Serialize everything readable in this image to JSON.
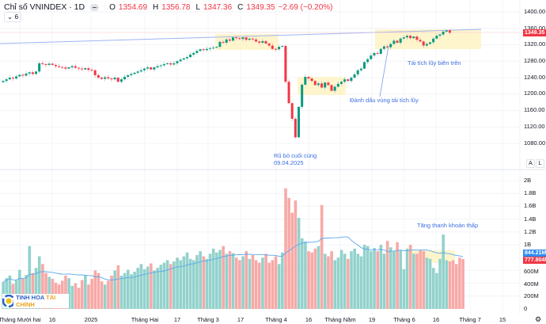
{
  "header": {
    "title": "Chỉ số VNINDEX · 1D",
    "open_label": "O",
    "open": "1354.69",
    "high_label": "H",
    "high": "1356.78",
    "low_label": "L",
    "low": "1347.36",
    "close_label": "C",
    "close": "1349.35",
    "change": "−2.69 (−0.20%)",
    "indicators_toggle": "6"
  },
  "colors": {
    "up": "#089981",
    "down": "#f23645",
    "up_vol": "#92d2cc",
    "down_vol": "#f7a9a7",
    "annotation": "#3d6fe0",
    "zone": "#fff3c4",
    "trendline": "#9fb4f5",
    "volume_ma": "#5aa8ea"
  },
  "price_axis": {
    "ticks": [
      "1400.00",
      "1360.00",
      "1320.00",
      "1280.00",
      "1240.00",
      "1200.00",
      "1160.00",
      "1120.00",
      "1080.00"
    ],
    "last_price_tag": "1349.35",
    "buttons": [
      "A",
      "L"
    ]
  },
  "volume_axis": {
    "ticks": [
      "2B",
      "1.8B",
      "1.6B",
      "1.4B",
      "1.2B",
      "1B",
      "600M",
      "400M",
      "200M",
      "0"
    ],
    "ma_tag": "844.21M",
    "volume_tag": "777.804M"
  },
  "time_axis": {
    "ticks": [
      "Tháng Mười hai",
      "16",
      "2025",
      "Tháng Hai",
      "17",
      "Tháng 3",
      "17",
      "Tháng 4",
      "16",
      "Tháng Năm",
      "19",
      "Tháng 6",
      "16",
      "Tháng 7",
      "15"
    ],
    "settings_icon": "gear-icon"
  },
  "annotations": {
    "shakeout_line1": "Rũ bỏ cuối cùng",
    "shakeout_line2": "09.04.2025",
    "reaccumulation_zone": "Đánh dấu vùng tái tích lũy",
    "upper_reaccumulation": "Tái tích lũy biên trên",
    "low_liquidity": "Tăng thanh khoản thấp"
  },
  "logo": {
    "text_a": "TINH HOA ",
    "text_b": "TÀI CHÍNH"
  },
  "chart_data": {
    "type": "candlestick",
    "symbol": "VNINDEX",
    "interval": "1D",
    "ylim": [
      1060,
      1410
    ],
    "volume_ylim": [
      0,
      2000
    ],
    "volume_unit": "M",
    "grid": true,
    "closes": [
      1232,
      1236,
      1240,
      1238,
      1243,
      1247,
      1245,
      1250,
      1253,
      1249,
      1255,
      1275,
      1273,
      1271,
      1274,
      1271,
      1268,
      1266,
      1265,
      1262,
      1265,
      1268,
      1264,
      1262,
      1260,
      1263,
      1259,
      1258,
      1246,
      1240,
      1237,
      1241,
      1238,
      1236,
      1240,
      1230,
      1236,
      1242,
      1246,
      1249,
      1252,
      1255,
      1258,
      1262,
      1265,
      1260,
      1265,
      1268,
      1270,
      1273,
      1275,
      1272,
      1275,
      1280,
      1284,
      1287,
      1290,
      1296,
      1300,
      1305,
      1309,
      1307,
      1310,
      1312,
      1313,
      1315,
      1327,
      1325,
      1333,
      1330,
      1338,
      1336,
      1334,
      1338,
      1332,
      1335,
      1333,
      1328,
      1325,
      1329,
      1323,
      1318,
      1310,
      1309,
      1315,
      1317,
      1230,
      1178,
      1140,
      1095,
      1169,
      1223,
      1242,
      1238,
      1232,
      1222,
      1226,
      1216,
      1228,
      1222,
      1208,
      1218,
      1225,
      1230,
      1236,
      1232,
      1240,
      1248,
      1258,
      1262,
      1278,
      1285,
      1294,
      1300,
      1298,
      1310,
      1316,
      1314,
      1322,
      1330,
      1325,
      1335,
      1338,
      1342,
      1336,
      1340,
      1332,
      1328,
      1318,
      1322,
      1326,
      1335,
      1342,
      1345,
      1352,
      1355,
      1349.35
    ],
    "volumes": [
      420,
      480,
      520,
      390,
      450,
      610,
      470,
      530,
      980,
      560,
      640,
      820,
      700,
      560,
      500,
      470,
      410,
      380,
      440,
      520,
      480,
      360,
      400,
      330,
      450,
      520,
      380,
      470,
      600,
      560,
      430,
      380,
      440,
      520,
      600,
      680,
      520,
      560,
      610,
      540,
      580,
      640,
      700,
      620,
      660,
      710,
      600,
      640,
      690,
      720,
      760,
      700,
      740,
      800,
      760,
      820,
      880,
      780,
      760,
      840,
      900,
      820,
      780,
      860,
      940,
      880,
      920,
      980,
      860,
      900,
      870,
      800,
      760,
      820,
      900,
      780,
      840,
      760,
      720,
      800,
      860,
      720,
      760,
      820,
      700,
      880,
      1880,
      1730,
      1500,
      1690,
      1420,
      1100,
      1050,
      900,
      880,
      940,
      980,
      1620,
      860,
      820,
      900,
      760,
      800,
      920,
      860,
      780,
      900,
      940,
      860,
      820,
      1000,
      980,
      900,
      950,
      900,
      1000,
      860,
      1060,
      960,
      900,
      1040,
      920,
      620,
      940,
      1000,
      860,
      860,
      920,
      900,
      800,
      780,
      640,
      560,
      780,
      1160,
      760,
      740,
      760,
      700,
      800,
      777.804
    ]
  }
}
